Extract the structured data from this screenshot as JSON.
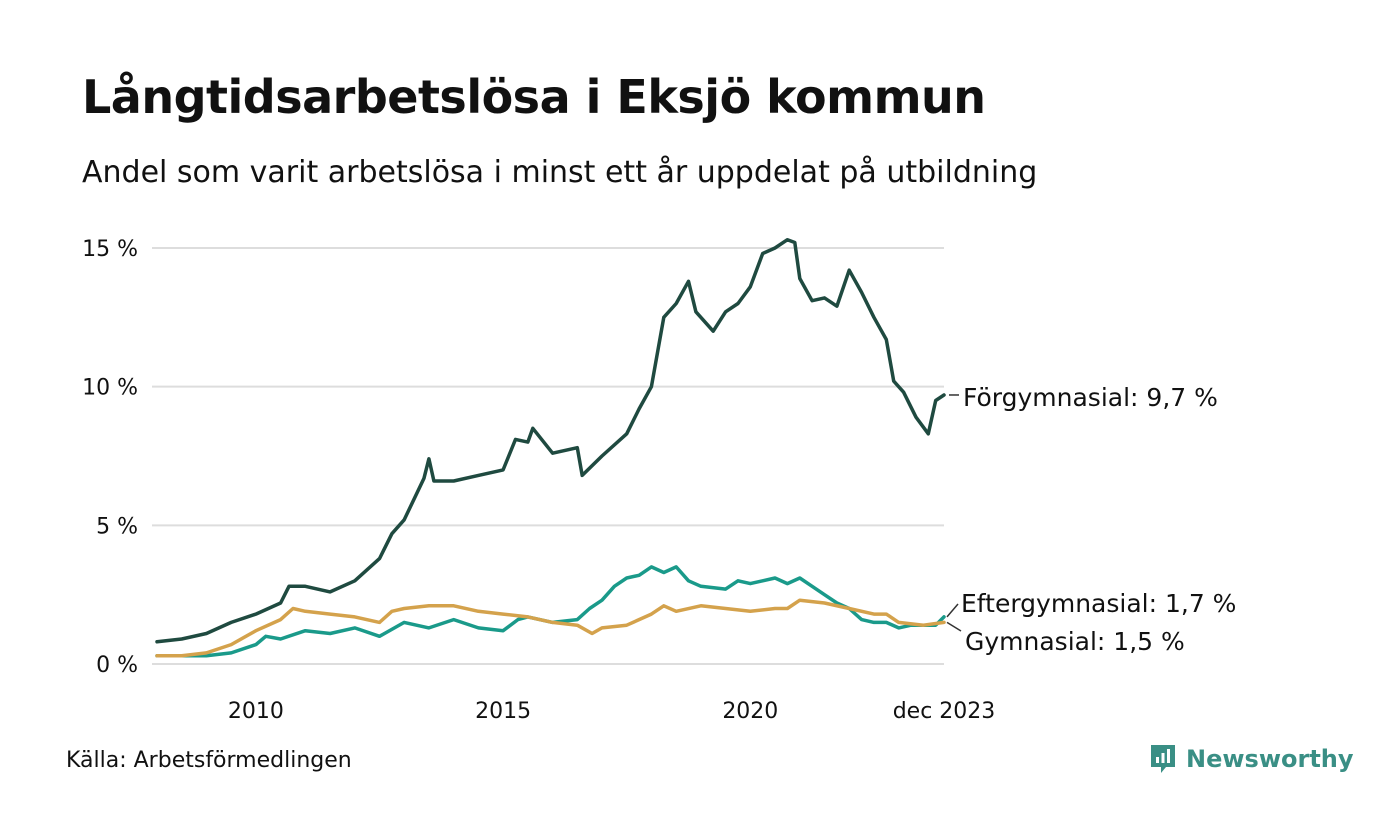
{
  "title": "Långtidsarbetslösa i Eksjö kommun",
  "subtitle": "Andel som varit arbetslösa i minst ett år uppdelat på utbildning",
  "source": "Källa: Arbetsförmedlingen",
  "brand": "Newsworthy",
  "colors": {
    "forgymnasial": "#1f4a40",
    "eftergymnasial": "#1a9a8a",
    "gymnasial": "#d4a24c",
    "grid": "#dddddd",
    "brand": "#3a8f85"
  },
  "chart_data": {
    "type": "line",
    "title": "Långtidsarbetslösa i Eksjö kommun",
    "subtitle": "Andel som varit arbetslösa i minst ett år uppdelat på utbildning",
    "xlabel": "",
    "ylabel": "",
    "x_unit": "year",
    "xlim": [
      2008.0,
      2023.917
    ],
    "ylim": [
      0,
      15
    ],
    "y_ticks": [
      0,
      5,
      10,
      15
    ],
    "y_tick_labels": [
      "0 %",
      "5 %",
      "10 %",
      "15 %"
    ],
    "x_ticks": [
      2010,
      2015,
      2020,
      2023.917
    ],
    "x_tick_labels": [
      "2010",
      "2015",
      "2020",
      "dec 2023"
    ],
    "grid": true,
    "legend": "end-of-line labels, right",
    "series": [
      {
        "name": "Förgymnasial",
        "end_label": "Förgymnasial: 9,7 %",
        "color": "#1f4a40",
        "points": [
          [
            2008.0,
            0.8
          ],
          [
            2008.5,
            0.9
          ],
          [
            2009.0,
            1.1
          ],
          [
            2009.5,
            1.5
          ],
          [
            2010.0,
            1.8
          ],
          [
            2010.5,
            2.2
          ],
          [
            2010.67,
            2.8
          ],
          [
            2011.0,
            2.8
          ],
          [
            2011.5,
            2.6
          ],
          [
            2012.0,
            3.0
          ],
          [
            2012.5,
            3.8
          ],
          [
            2012.75,
            4.7
          ],
          [
            2013.0,
            5.2
          ],
          [
            2013.4,
            6.7
          ],
          [
            2013.5,
            7.4
          ],
          [
            2013.6,
            6.6
          ],
          [
            2014.0,
            6.6
          ],
          [
            2014.5,
            6.8
          ],
          [
            2015.0,
            7.0
          ],
          [
            2015.25,
            8.1
          ],
          [
            2015.5,
            8.0
          ],
          [
            2015.6,
            8.5
          ],
          [
            2016.0,
            7.6
          ],
          [
            2016.5,
            7.8
          ],
          [
            2016.6,
            6.8
          ],
          [
            2017.0,
            7.5
          ],
          [
            2017.5,
            8.3
          ],
          [
            2017.75,
            9.2
          ],
          [
            2018.0,
            10.0
          ],
          [
            2018.25,
            12.5
          ],
          [
            2018.5,
            13.0
          ],
          [
            2018.75,
            13.8
          ],
          [
            2018.9,
            12.7
          ],
          [
            2019.25,
            12.0
          ],
          [
            2019.5,
            12.7
          ],
          [
            2019.75,
            13.0
          ],
          [
            2020.0,
            13.6
          ],
          [
            2020.25,
            14.8
          ],
          [
            2020.5,
            15.0
          ],
          [
            2020.75,
            15.3
          ],
          [
            2020.9,
            15.2
          ],
          [
            2021.0,
            13.9
          ],
          [
            2021.25,
            13.1
          ],
          [
            2021.5,
            13.2
          ],
          [
            2021.75,
            12.9
          ],
          [
            2022.0,
            14.2
          ],
          [
            2022.25,
            13.4
          ],
          [
            2022.5,
            12.5
          ],
          [
            2022.75,
            11.7
          ],
          [
            2022.9,
            10.2
          ],
          [
            2023.1,
            9.8
          ],
          [
            2023.35,
            8.9
          ],
          [
            2023.6,
            8.3
          ],
          [
            2023.75,
            9.5
          ],
          [
            2023.917,
            9.7
          ]
        ]
      },
      {
        "name": "Eftergymnasial",
        "end_label": "Eftergymnasial: 1,7 %",
        "color": "#1a9a8a",
        "points": [
          [
            2008.0,
            0.3
          ],
          [
            2008.5,
            0.3
          ],
          [
            2009.0,
            0.3
          ],
          [
            2009.5,
            0.4
          ],
          [
            2010.0,
            0.7
          ],
          [
            2010.2,
            1.0
          ],
          [
            2010.5,
            0.9
          ],
          [
            2011.0,
            1.2
          ],
          [
            2011.5,
            1.1
          ],
          [
            2012.0,
            1.3
          ],
          [
            2012.5,
            1.0
          ],
          [
            2013.0,
            1.5
          ],
          [
            2013.5,
            1.3
          ],
          [
            2014.0,
            1.6
          ],
          [
            2014.5,
            1.3
          ],
          [
            2015.0,
            1.2
          ],
          [
            2015.3,
            1.6
          ],
          [
            2015.5,
            1.7
          ],
          [
            2016.0,
            1.5
          ],
          [
            2016.5,
            1.6
          ],
          [
            2016.75,
            2.0
          ],
          [
            2017.0,
            2.3
          ],
          [
            2017.25,
            2.8
          ],
          [
            2017.5,
            3.1
          ],
          [
            2017.75,
            3.2
          ],
          [
            2018.0,
            3.5
          ],
          [
            2018.25,
            3.3
          ],
          [
            2018.5,
            3.5
          ],
          [
            2018.75,
            3.0
          ],
          [
            2019.0,
            2.8
          ],
          [
            2019.5,
            2.7
          ],
          [
            2019.75,
            3.0
          ],
          [
            2020.0,
            2.9
          ],
          [
            2020.25,
            3.0
          ],
          [
            2020.5,
            3.1
          ],
          [
            2020.75,
            2.9
          ],
          [
            2021.0,
            3.1
          ],
          [
            2021.25,
            2.8
          ],
          [
            2021.5,
            2.5
          ],
          [
            2021.75,
            2.2
          ],
          [
            2022.0,
            2.0
          ],
          [
            2022.25,
            1.6
          ],
          [
            2022.5,
            1.5
          ],
          [
            2022.75,
            1.5
          ],
          [
            2023.0,
            1.3
          ],
          [
            2023.25,
            1.4
          ],
          [
            2023.5,
            1.4
          ],
          [
            2023.75,
            1.4
          ],
          [
            2023.917,
            1.7
          ]
        ]
      },
      {
        "name": "Gymnasial",
        "end_label": "Gymnasial: 1,5 %",
        "color": "#d4a24c",
        "points": [
          [
            2008.0,
            0.3
          ],
          [
            2008.5,
            0.3
          ],
          [
            2009.0,
            0.4
          ],
          [
            2009.5,
            0.7
          ],
          [
            2010.0,
            1.2
          ],
          [
            2010.5,
            1.6
          ],
          [
            2010.75,
            2.0
          ],
          [
            2011.0,
            1.9
          ],
          [
            2011.5,
            1.8
          ],
          [
            2012.0,
            1.7
          ],
          [
            2012.5,
            1.5
          ],
          [
            2012.75,
            1.9
          ],
          [
            2013.0,
            2.0
          ],
          [
            2013.5,
            2.1
          ],
          [
            2014.0,
            2.1
          ],
          [
            2014.5,
            1.9
          ],
          [
            2015.0,
            1.8
          ],
          [
            2015.5,
            1.7
          ],
          [
            2016.0,
            1.5
          ],
          [
            2016.5,
            1.4
          ],
          [
            2016.8,
            1.1
          ],
          [
            2017.0,
            1.3
          ],
          [
            2017.5,
            1.4
          ],
          [
            2018.0,
            1.8
          ],
          [
            2018.25,
            2.1
          ],
          [
            2018.5,
            1.9
          ],
          [
            2019.0,
            2.1
          ],
          [
            2019.5,
            2.0
          ],
          [
            2020.0,
            1.9
          ],
          [
            2020.5,
            2.0
          ],
          [
            2020.75,
            2.0
          ],
          [
            2021.0,
            2.3
          ],
          [
            2021.5,
            2.2
          ],
          [
            2022.0,
            2.0
          ],
          [
            2022.5,
            1.8
          ],
          [
            2022.75,
            1.8
          ],
          [
            2023.0,
            1.5
          ],
          [
            2023.5,
            1.4
          ],
          [
            2023.917,
            1.5
          ]
        ]
      }
    ]
  }
}
